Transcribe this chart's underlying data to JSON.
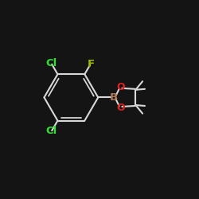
{
  "background_color": "#141414",
  "bond_color": "#d8d8d8",
  "bond_width": 1.5,
  "atom_labels": {
    "Cl1": {
      "text": "Cl",
      "color": "#33dd33",
      "fontsize": 9.5,
      "fontweight": "bold"
    },
    "Cl2": {
      "text": "Cl",
      "color": "#33dd33",
      "fontsize": 9.5,
      "fontweight": "bold"
    },
    "F": {
      "text": "F",
      "color": "#99bb00",
      "fontsize": 9.5,
      "fontweight": "bold"
    },
    "B": {
      "text": "B",
      "color": "#aa7755",
      "fontsize": 9.5,
      "fontweight": "bold"
    },
    "O1": {
      "text": "O",
      "color": "#dd2222",
      "fontsize": 9.0,
      "fontweight": "bold"
    },
    "O2": {
      "text": "O",
      "color": "#dd2222",
      "fontsize": 9.0,
      "fontweight": "bold"
    }
  },
  "figsize": [
    2.5,
    2.5
  ],
  "dpi": 100
}
